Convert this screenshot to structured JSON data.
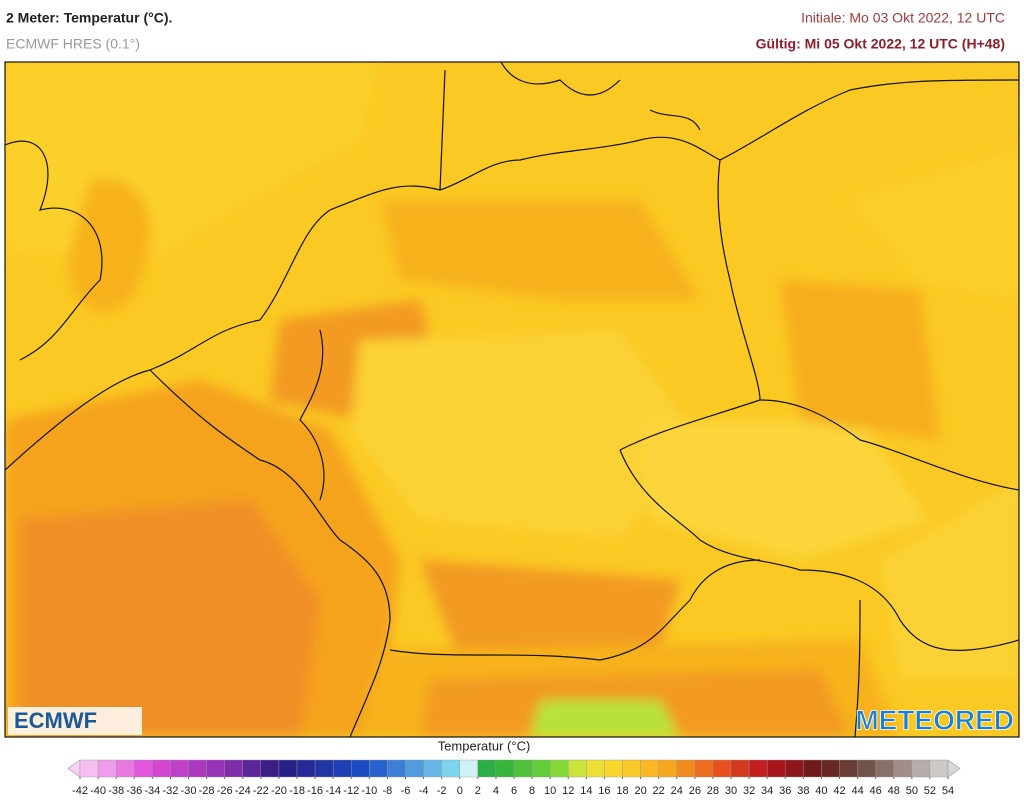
{
  "header": {
    "title": "2 Meter: Temperatur (°C).",
    "subtitle": "ECMWF HRES (0.1°)",
    "initial": "Initiale: Mo 03 Okt 2022, 12 UTC",
    "valid": "Gültig: Mi 05 Okt 2022, 12 UTC (H+48)"
  },
  "logos": {
    "left": "ECMWF",
    "right": "METEORED"
  },
  "legend": {
    "title": "Temperatur (°C)",
    "ticks": [
      -42,
      -40,
      -38,
      -36,
      -34,
      -32,
      -30,
      -28,
      -26,
      -24,
      -22,
      -20,
      -18,
      -16,
      -14,
      -12,
      -10,
      -8,
      -6,
      -4,
      -2,
      0,
      2,
      4,
      6,
      8,
      10,
      12,
      14,
      16,
      18,
      20,
      22,
      24,
      26,
      28,
      30,
      32,
      34,
      36,
      38,
      40,
      42,
      44,
      46,
      48,
      50,
      52,
      54
    ]
  }
}
